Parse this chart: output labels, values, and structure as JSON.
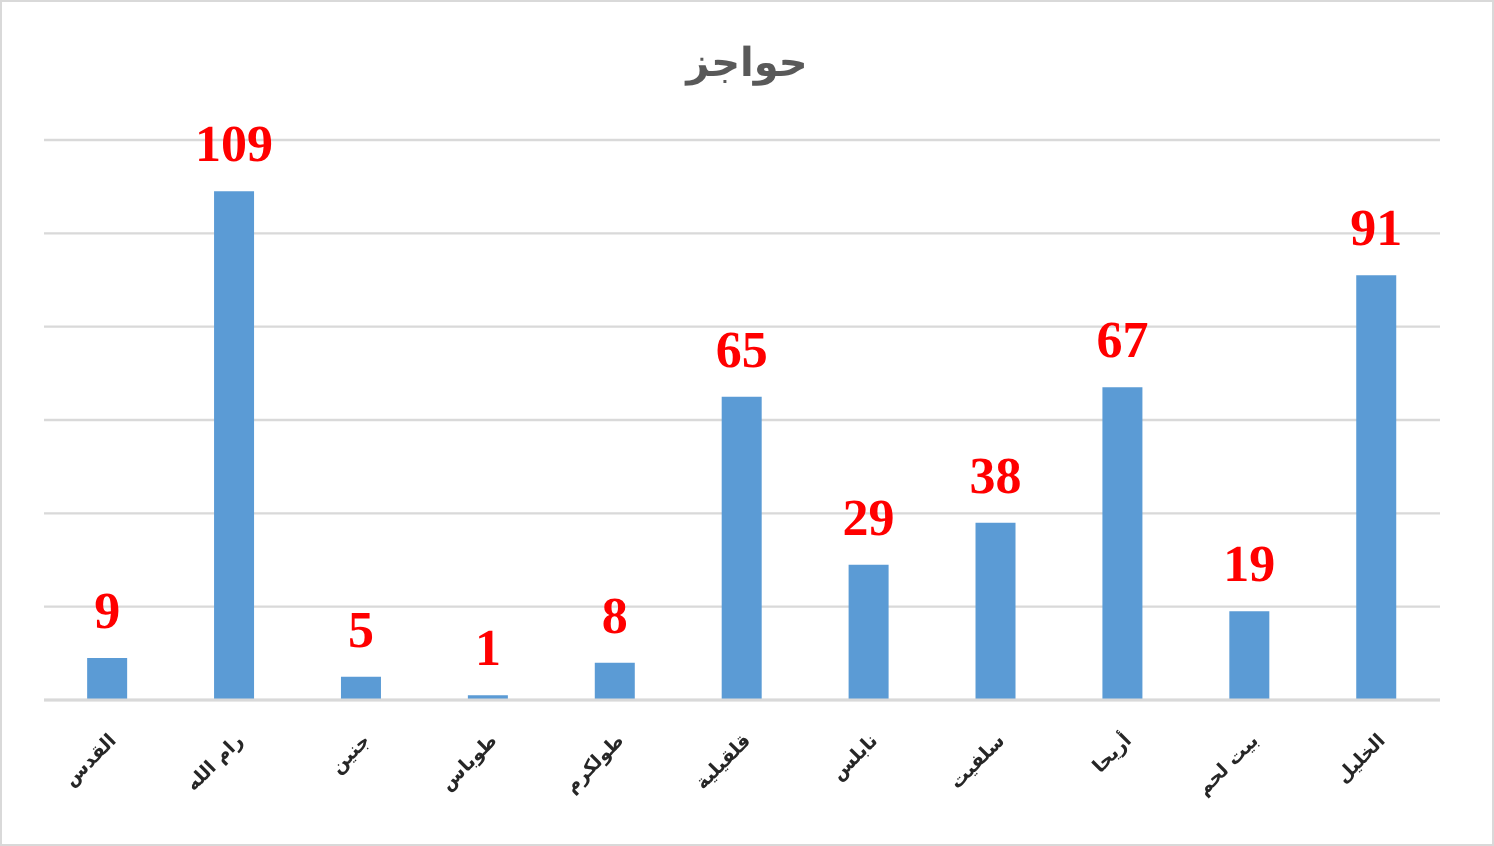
{
  "chart_data": {
    "type": "bar",
    "title": "حواجز",
    "categories": [
      "القدس",
      "رام الله",
      "جنين",
      "طوباس",
      "طولكرم",
      "قلقيلية",
      "نابلس",
      "سلفيت",
      "أريحا",
      "بيت لحم",
      "الخليل"
    ],
    "values": [
      9,
      109,
      5,
      1,
      8,
      65,
      29,
      38,
      67,
      19,
      91
    ],
    "color": "#5b9bd5",
    "data_labels": true,
    "ylim": [
      0,
      120
    ],
    "yticks": [
      {
        "value": 0,
        "label": null
      },
      {
        "value": 20,
        "label": null
      },
      {
        "value": 40,
        "label": null
      },
      {
        "value": 60,
        "label": null
      },
      {
        "value": 80,
        "label": null
      },
      {
        "value": 100,
        "label": null
      },
      {
        "value": 120,
        "label": null
      }
    ],
    "grid": "y",
    "tick_labels": "x"
  }
}
